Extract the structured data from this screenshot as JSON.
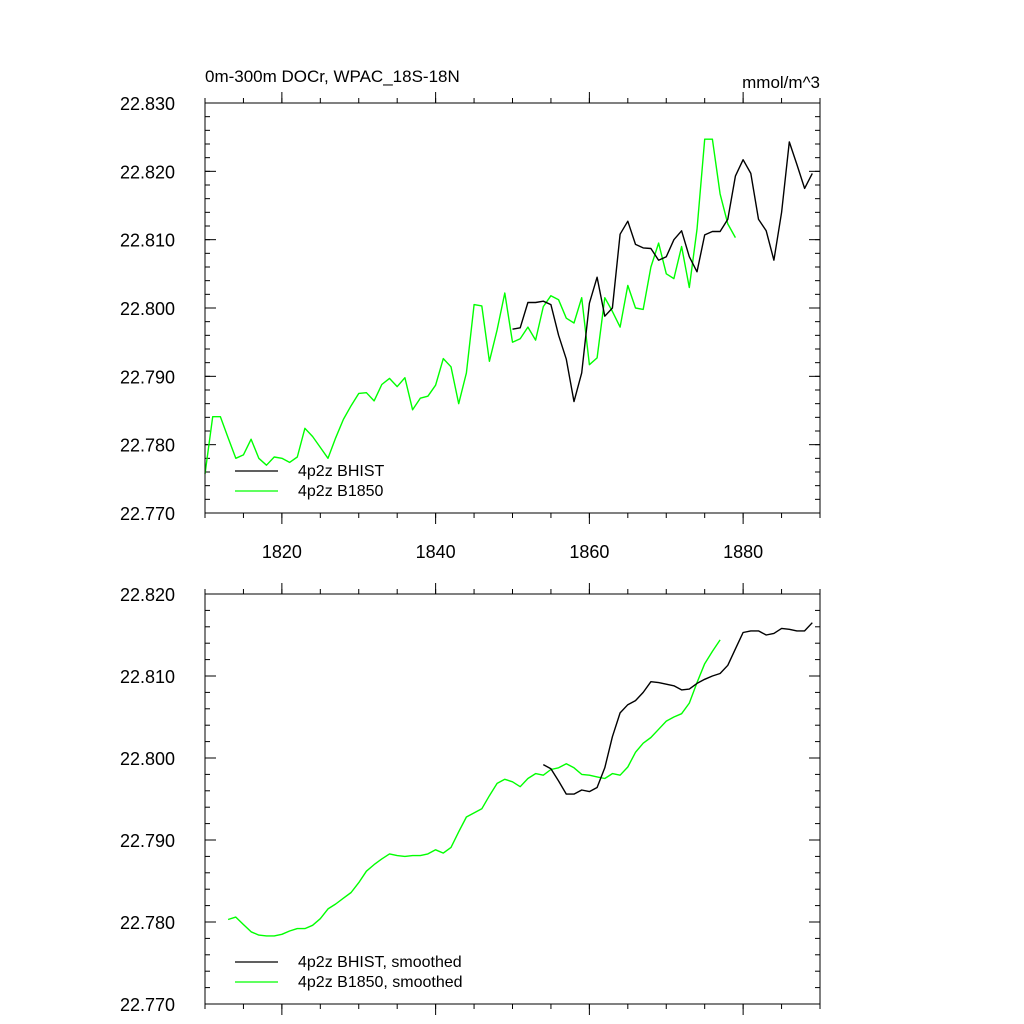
{
  "chart_data": [
    {
      "type": "line",
      "title": "0m-300m DOCr, WPAC_18S-18N",
      "units": "mmol/m^3",
      "xlim": [
        1810,
        1890
      ],
      "ylim": [
        22.77,
        22.83
      ],
      "x_ticks": [
        1820,
        1840,
        1860,
        1880
      ],
      "x_tick_labels": [
        "1820",
        "1840",
        "1860",
        "1880"
      ],
      "y_ticks": [
        22.77,
        22.78,
        22.79,
        22.8,
        22.81,
        22.82,
        22.83
      ],
      "y_tick_labels": [
        "22.770",
        "22.780",
        "22.790",
        "22.800",
        "22.810",
        "22.820",
        "22.830"
      ],
      "legend_position": "bottom-left",
      "series": [
        {
          "name": "4p2z BHIST",
          "color": "#000000",
          "x": [
            1850,
            1851,
            1852,
            1853,
            1854,
            1855,
            1856,
            1857,
            1858,
            1859,
            1860,
            1861,
            1862,
            1863,
            1864,
            1865,
            1866,
            1867,
            1868,
            1869,
            1870,
            1871,
            1872,
            1873,
            1874,
            1875,
            1876,
            1877,
            1878,
            1879,
            1880,
            1881,
            1882,
            1883,
            1884,
            1885,
            1886,
            1887,
            1888,
            1889
          ],
          "values": [
            22.7969,
            22.7971,
            22.8008,
            22.8008,
            22.801,
            22.8005,
            22.796,
            22.7925,
            22.7863,
            22.7905,
            22.8007,
            22.8045,
            22.7988,
            22.8,
            22.8108,
            22.8127,
            22.8093,
            22.8088,
            22.8087,
            22.807,
            22.8075,
            22.81,
            22.8113,
            22.8075,
            22.8053,
            22.8107,
            22.8112,
            22.8112,
            22.813,
            22.8193,
            22.8217,
            22.8197,
            22.813,
            22.8113,
            22.807,
            22.814,
            22.8243,
            22.821,
            22.8175,
            22.8197
          ]
        },
        {
          "name": "4p2z B1850",
          "color": "#00ff00",
          "x": [
            1810,
            1811,
            1812,
            1813,
            1814,
            1815,
            1816,
            1817,
            1818,
            1819,
            1820,
            1821,
            1822,
            1823,
            1824,
            1825,
            1826,
            1827,
            1828,
            1829,
            1830,
            1831,
            1832,
            1833,
            1834,
            1835,
            1836,
            1837,
            1838,
            1839,
            1840,
            1841,
            1842,
            1843,
            1844,
            1845,
            1846,
            1847,
            1848,
            1849,
            1850,
            1851,
            1852,
            1853,
            1854,
            1855,
            1856,
            1857,
            1858,
            1859,
            1860,
            1861,
            1862,
            1863,
            1864,
            1865,
            1866,
            1867,
            1868,
            1869,
            1870,
            1871,
            1872,
            1873,
            1874,
            1875,
            1876,
            1877,
            1878,
            1879
          ],
          "values": [
            22.7757,
            22.7841,
            22.7841,
            22.781,
            22.778,
            22.7785,
            22.7808,
            22.778,
            22.777,
            22.7782,
            22.778,
            22.7774,
            22.7782,
            22.7824,
            22.7812,
            22.7796,
            22.778,
            22.781,
            22.7837,
            22.7857,
            22.7875,
            22.7876,
            22.7864,
            22.7888,
            22.7897,
            22.7885,
            22.7898,
            22.7851,
            22.7868,
            22.7871,
            22.7887,
            22.7926,
            22.7914,
            22.786,
            22.7905,
            22.8005,
            22.8003,
            22.7922,
            22.7968,
            22.8022,
            22.795,
            22.7955,
            22.7972,
            22.7953,
            22.8002,
            22.8018,
            22.8012,
            22.7985,
            22.7978,
            22.8015,
            22.7917,
            22.7927,
            22.8015,
            22.7995,
            22.7972,
            22.8033,
            22.8,
            22.7998,
            22.806,
            22.8095,
            22.805,
            22.8043,
            22.809,
            22.803,
            22.8115,
            22.8247,
            22.8247,
            22.8167,
            22.8123,
            22.8103
          ]
        }
      ]
    },
    {
      "type": "line",
      "title": "",
      "xlim": [
        1810,
        1890
      ],
      "ylim": [
        22.77,
        22.82
      ],
      "x_ticks": [
        1820,
        1840,
        1860,
        1880
      ],
      "y_ticks": [
        22.77,
        22.78,
        22.79,
        22.8,
        22.81,
        22.82
      ],
      "y_tick_labels": [
        "22.770",
        "22.780",
        "22.790",
        "22.800",
        "22.810",
        "22.820"
      ],
      "legend_position": "bottom-left",
      "series": [
        {
          "name": "4p2z BHIST, smoothed",
          "color": "#000000",
          "x": [
            1854,
            1855,
            1856,
            1857,
            1858,
            1859,
            1860,
            1861,
            1862,
            1863,
            1864,
            1865,
            1866,
            1867,
            1868,
            1869,
            1870,
            1871,
            1872,
            1873,
            1874,
            1875,
            1876,
            1877,
            1878,
            1879,
            1880,
            1881,
            1882,
            1883,
            1884,
            1885,
            1886,
            1887,
            1888,
            1889
          ],
          "values": [
            22.7992,
            22.7987,
            22.7972,
            22.7956,
            22.7956,
            22.7961,
            22.7959,
            22.7964,
            22.7988,
            22.8026,
            22.8055,
            22.8065,
            22.807,
            22.808,
            22.8093,
            22.8092,
            22.809,
            22.8088,
            22.8083,
            22.8084,
            22.8091,
            22.8096,
            22.81,
            22.8103,
            22.8113,
            22.8133,
            22.8153,
            22.8155,
            22.8155,
            22.815,
            22.8152,
            22.8158,
            22.8157,
            22.8155,
            22.8155,
            22.8165
          ]
        },
        {
          "name": "4p2z B1850, smoothed",
          "color": "#00ff00",
          "x": [
            1813,
            1814,
            1815,
            1816,
            1817,
            1818,
            1819,
            1820,
            1821,
            1822,
            1823,
            1824,
            1825,
            1826,
            1827,
            1828,
            1829,
            1830,
            1831,
            1832,
            1833,
            1834,
            1835,
            1836,
            1837,
            1838,
            1839,
            1840,
            1841,
            1842,
            1843,
            1844,
            1845,
            1846,
            1847,
            1848,
            1849,
            1850,
            1851,
            1852,
            1853,
            1854,
            1855,
            1856,
            1857,
            1858,
            1859,
            1860,
            1861,
            1862,
            1863,
            1864,
            1865,
            1866,
            1867,
            1868,
            1869,
            1870,
            1871,
            1872,
            1873,
            1874,
            1875,
            1876,
            1877
          ],
          "values": [
            22.7803,
            22.7806,
            22.7797,
            22.7788,
            22.7784,
            22.7783,
            22.7783,
            22.7785,
            22.7789,
            22.7792,
            22.7792,
            22.7796,
            22.7804,
            22.7816,
            22.7822,
            22.7829,
            22.7836,
            22.7848,
            22.7862,
            22.787,
            22.7877,
            22.7883,
            22.7881,
            22.788,
            22.7881,
            22.7881,
            22.7883,
            22.7888,
            22.7884,
            22.7891,
            22.791,
            22.7928,
            22.7933,
            22.7938,
            22.7954,
            22.7969,
            22.7974,
            22.7971,
            22.7965,
            22.7975,
            22.7981,
            22.7979,
            22.7986,
            22.7988,
            22.7993,
            22.7988,
            22.798,
            22.7979,
            22.7977,
            22.7975,
            22.7981,
            22.7979,
            22.7989,
            22.8007,
            22.8018,
            22.8025,
            22.8035,
            22.8045,
            22.805,
            22.8054,
            22.8067,
            22.8092,
            22.8115,
            22.813,
            22.8144
          ]
        }
      ]
    }
  ]
}
